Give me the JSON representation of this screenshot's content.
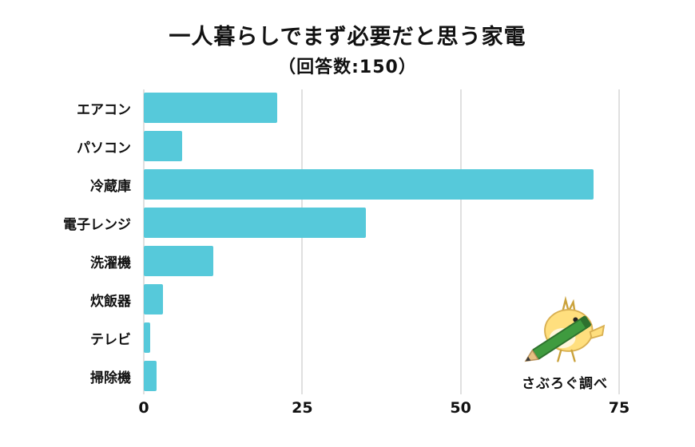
{
  "chart_data": {
    "type": "bar",
    "orientation": "horizontal",
    "title": "一人暮らしでまず必要だと思う家電",
    "subtitle": "（回答数:150）",
    "categories": [
      "エアコン",
      "パソコン",
      "冷蔵庫",
      "電子レンジ",
      "洗濯機",
      "炊飯器",
      "テレビ",
      "掃除機"
    ],
    "values": [
      21,
      6,
      71,
      35,
      11,
      3,
      1,
      2
    ],
    "xlabel": "",
    "ylabel": "",
    "xlim": [
      0,
      75
    ],
    "xticks": [
      0,
      25,
      50,
      75
    ],
    "grid": true,
    "legend": false
  },
  "branding": {
    "credit": "さぶろぐ調べ",
    "mascot_icon": "chick-with-pencil-icon"
  },
  "colors": {
    "bar": "#56c9da",
    "grid": "#e0e0e0",
    "text": "#111111",
    "background": "#ffffff",
    "mascot_yellow": "#ffdf7e",
    "mascot_cheek": "#f5a35a",
    "pencil_green": "#3f9b3f"
  }
}
